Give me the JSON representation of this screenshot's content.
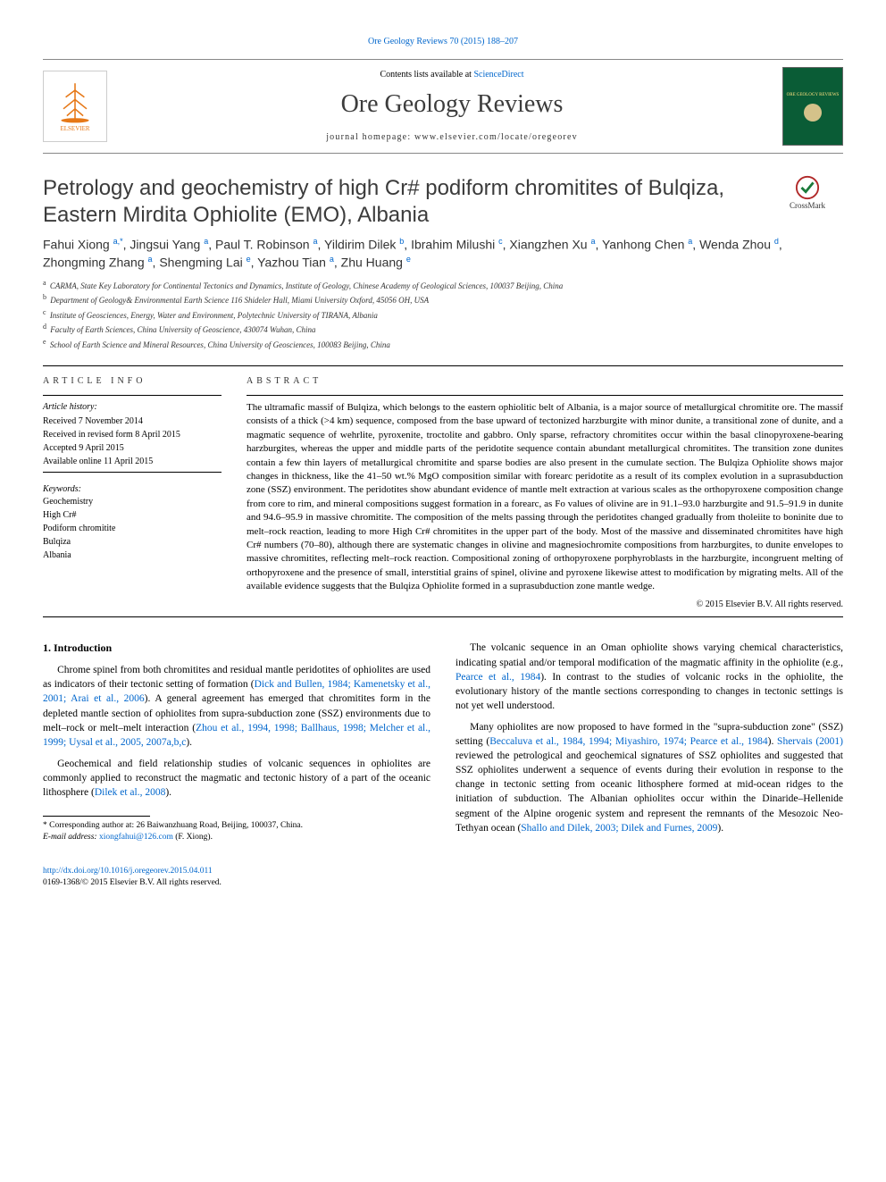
{
  "top_citation": "Ore Geology Reviews 70 (2015) 188–207",
  "header": {
    "contents_prefix": "Contents lists available at ",
    "contents_link": "ScienceDirect",
    "journal": "Ore Geology Reviews",
    "homepage_prefix": "journal homepage: ",
    "homepage": "www.elsevier.com/locate/oregeorev",
    "publisher": "ELSEVIER",
    "cover_text": "ORE GEOLOGY REVIEWS"
  },
  "crossmark_label": "CrossMark",
  "title": "Petrology and geochemistry of high Cr# podiform chromitites of Bulqiza, Eastern Mirdita Ophiolite (EMO), Albania",
  "authors_line_parts": [
    {
      "name": "Fahui Xiong ",
      "sup": "a,",
      "corr": "*"
    },
    {
      "name": ", Jingsui Yang ",
      "sup": "a"
    },
    {
      "name": ", Paul T. Robinson ",
      "sup": "a"
    },
    {
      "name": ", Yildirim Dilek ",
      "sup": "b"
    },
    {
      "name": ", Ibrahim Milushi ",
      "sup": "c"
    },
    {
      "name": ", Xiangzhen Xu ",
      "sup": "a"
    },
    {
      "name": ", Yanhong Chen ",
      "sup": "a"
    },
    {
      "name": ", Wenda Zhou ",
      "sup": "d"
    },
    {
      "name": ", Zhongming Zhang ",
      "sup": "a"
    },
    {
      "name": ", Shengming Lai ",
      "sup": "e"
    },
    {
      "name": ", Yazhou Tian ",
      "sup": "a"
    },
    {
      "name": ", Zhu Huang ",
      "sup": "e"
    }
  ],
  "affiliations": [
    {
      "key": "a",
      "text": "CARMA, State Key Laboratory for Continental Tectonics and Dynamics, Institute of Geology, Chinese Academy of Geological Sciences, 100037 Beijing, China"
    },
    {
      "key": "b",
      "text": "Department of Geology& Environmental Earth Science 116 Shideler Hall, Miami University Oxford, 45056 OH, USA"
    },
    {
      "key": "c",
      "text": "Institute of Geosciences, Energy, Water and Environment, Polytechnic University of TIRANA, Albania"
    },
    {
      "key": "d",
      "text": "Faculty of Earth Sciences, China University of Geoscience, 430074 Wuhan, China"
    },
    {
      "key": "e",
      "text": "School of Earth Science and Mineral Resources, China University of Geosciences, 100083 Beijing, China"
    }
  ],
  "article_info": {
    "label": "article info",
    "history_head": "Article history:",
    "history": [
      "Received 7 November 2014",
      "Received in revised form 8 April 2015",
      "Accepted 9 April 2015",
      "Available online 11 April 2015"
    ],
    "keywords_head": "Keywords:",
    "keywords": [
      "Geochemistry",
      "High Cr#",
      "Podiform chromitite",
      "Bulqiza",
      "Albania"
    ]
  },
  "abstract": {
    "label": "abstract",
    "text": "The ultramafic massif of Bulqiza, which belongs to the eastern ophiolitic belt of Albania, is a major source of metallurgical chromitite ore. The massif consists of a thick (>4 km) sequence, composed from the base upward of tectonized harzburgite with minor dunite, a transitional zone of dunite, and a magmatic sequence of wehrlite, pyroxenite, troctolite and gabbro. Only sparse, refractory chromitites occur within the basal clinopyroxene-bearing harzburgites, whereas the upper and middle parts of the peridotite sequence contain abundant metallurgical chromitites. The transition zone dunites contain a few thin layers of metallurgical chromitite and sparse bodies are also present in the cumulate section. The Bulqiza Ophiolite shows major changes in thickness, like the 41–50 wt.% MgO composition similar with forearc peridotite as a result of its complex evolution in a suprasubduction zone (SSZ) environment. The peridotites show abundant evidence of mantle melt extraction at various scales as the orthopyroxene composition change from core to rim, and mineral compositions suggest formation in a forearc, as Fo values of olivine are in 91.1–93.0 harzburgite and 91.5–91.9 in dunite and 94.6–95.9 in massive chromitite. The composition of the melts passing through the peridotites changed gradually from tholeiite to boninite due to melt–rock reaction, leading to more High Cr# chromitites in the upper part of the body. Most of the massive and disseminated chromitites have high Cr# numbers (70–80), although there are systematic changes in olivine and magnesiochromite compositions from harzburgites, to dunite envelopes to massive chromitites, reflecting melt–rock reaction. Compositional zoning of orthopyroxene porphyroblasts in the harzburgite, incongruent melting of orthopyroxene and the presence of small, interstitial grains of spinel, olivine and pyroxene likewise attest to modification by migrating melts. All of the available evidence suggests that the Bulqiza Ophiolite formed in a suprasubduction zone mantle wedge.",
    "copyright": "© 2015 Elsevier B.V. All rights reserved."
  },
  "body": {
    "heading": "1. Introduction",
    "col1": [
      {
        "pre": "Chrome spinel from both chromitites and residual mantle peridotites of ophiolites are used as indicators of their tectonic setting of formation (",
        "link": "Dick and Bullen, 1984; Kamenetsky et al., 2001; Arai et al., 2006",
        "post": "). A general agreement has emerged that chromitites form in the depleted mantle section of ophiolites from supra-subduction zone (SSZ) environments due to melt–rock or melt–melt interaction (",
        "link2": "Zhou et al., 1994, 1998; Ballhaus, 1998; Melcher et al., 1999; Uysal et al., 2005, 2007a,b,c",
        "post2": ")."
      },
      {
        "pre": "Geochemical and field relationship studies of volcanic sequences in ophiolites are commonly applied to reconstruct the magmatic and tectonic history of a part of the oceanic lithosphere (",
        "link": "Dilek et al., 2008",
        "post": ")."
      }
    ],
    "col2": [
      {
        "pre": "The volcanic sequence in an Oman ophiolite shows varying chemical characteristics, indicating spatial and/or temporal modification of the magmatic affinity in the ophiolite (e.g., ",
        "link": "Pearce et al., 1984",
        "post": "). In contrast to the studies of volcanic rocks in the ophiolite, the evolutionary history of the mantle sections corresponding to changes in tectonic settings is not yet well understood."
      },
      {
        "pre": "Many ophiolites are now proposed to have formed in the \"supra-subduction zone\" (SSZ) setting (",
        "link": "Beccaluva et al., 1984, 1994; Miyashiro, 1974; Pearce et al., 1984",
        "post": "). ",
        "link2": "Shervais (2001)",
        "post2": " reviewed the petrological and geochemical signatures of SSZ ophiolites and suggested that SSZ ophiolites underwent a sequence of events during their evolution in response to the change in tectonic setting from oceanic lithosphere formed at mid-ocean ridges to the initiation of subduction. The Albanian ophiolites occur within the Dinaride–Hellenide segment of the Alpine orogenic system and represent the remnants of the Mesozoic Neo-Tethyan ocean (",
        "link3": "Shallo and Dilek, 2003; Dilek and Furnes, 2009",
        "post3": ")."
      }
    ]
  },
  "footnote": {
    "corr_text": "Corresponding author at: 26 Baiwanzhuang Road, Beijing, 100037, China.",
    "email_label": "E-mail address: ",
    "email": "xiongfahui@126.com",
    "email_suffix": " (F. Xiong)."
  },
  "footer": {
    "doi": "http://dx.doi.org/10.1016/j.oregeorev.2015.04.011",
    "issn_line": "0169-1368/© 2015 Elsevier B.V. All rights reserved."
  },
  "colors": {
    "link": "#0066cc",
    "elsevier_orange": "#e67817",
    "cover_green": "#0a5c36",
    "text": "#000000"
  }
}
